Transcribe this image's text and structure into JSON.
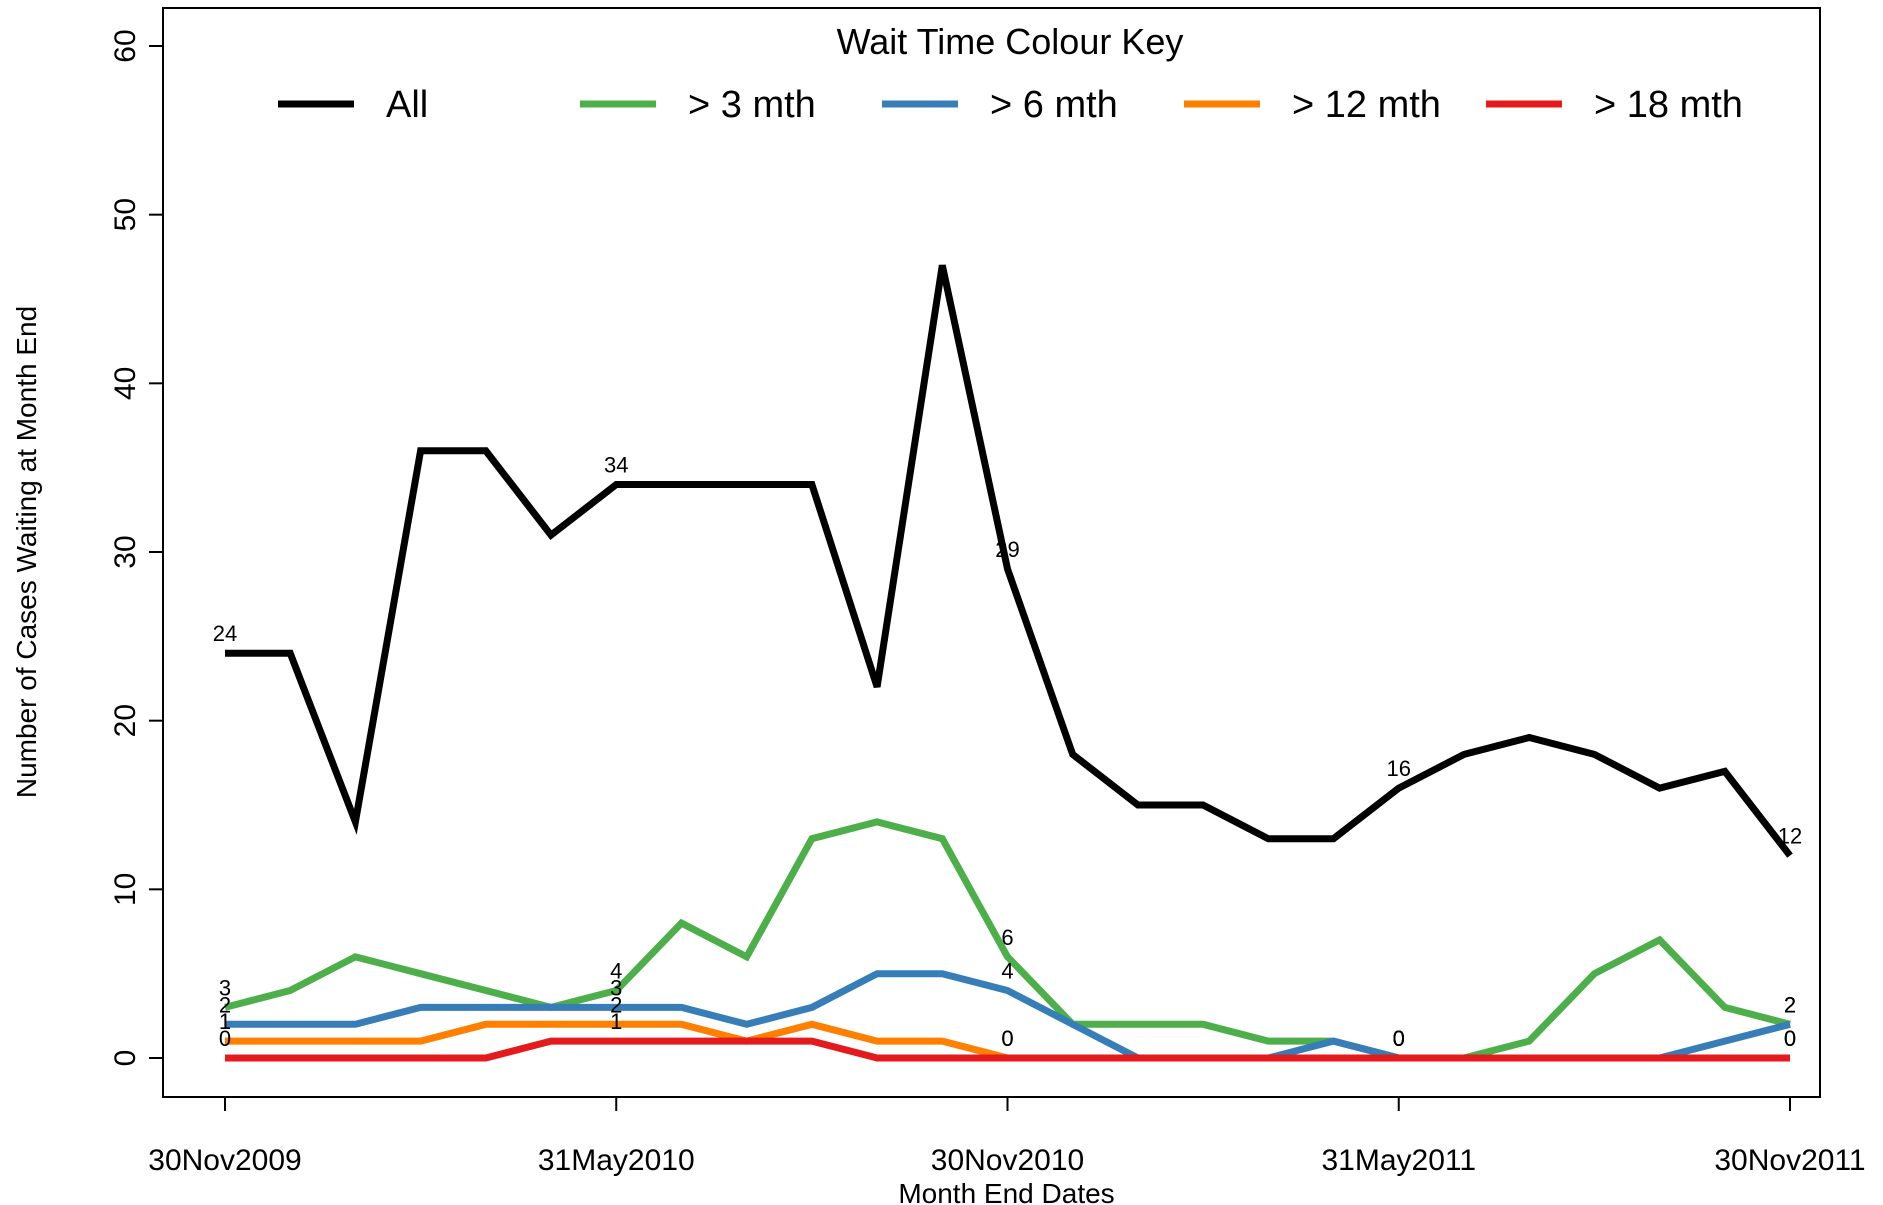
{
  "chart_data": {
    "type": "line",
    "title": "",
    "xlabel": "Month End Dates",
    "ylabel": "Number of Cases Waiting at Month End",
    "ylim": [
      0,
      60
    ],
    "yticks": [
      0,
      10,
      20,
      30,
      40,
      50,
      60
    ],
    "x": [
      "30Nov2009",
      "31Dec2009",
      "31Jan2010",
      "28Feb2010",
      "31Mar2010",
      "30Apr2010",
      "31May2010",
      "30Jun2010",
      "31Jul2010",
      "31Aug2010",
      "30Sep2010",
      "31Oct2010",
      "30Nov2010",
      "31Dec2010",
      "31Jan2011",
      "28Feb2011",
      "31Mar2011",
      "30Apr2011",
      "31May2011",
      "30Jun2011",
      "31Jul2011",
      "31Aug2011",
      "30Sep2011",
      "31Oct2011",
      "30Nov2011"
    ],
    "xtick_labels": [
      "30Nov2009",
      "31May2010",
      "30Nov2010",
      "31May2011",
      "30Nov2011"
    ],
    "grid": false,
    "legend": {
      "title": "Wait Time Colour Key",
      "placement": "top"
    },
    "series": [
      {
        "name": "All",
        "color": "#000000",
        "values": [
          24,
          24,
          14,
          36,
          36,
          31,
          34,
          34,
          34,
          34,
          22,
          47,
          29,
          18,
          15,
          15,
          13,
          13,
          16,
          18,
          19,
          18,
          16,
          17,
          12
        ]
      },
      {
        "name": "> 3 mth",
        "color": "#4daf4a",
        "values": [
          3,
          4,
          6,
          5,
          4,
          3,
          4,
          8,
          6,
          13,
          14,
          13,
          6,
          2,
          2,
          2,
          1,
          1,
          0,
          0,
          1,
          5,
          7,
          3,
          2
        ]
      },
      {
        "name": "> 6 mth",
        "color": "#377eb8",
        "values": [
          2,
          2,
          2,
          3,
          3,
          3,
          3,
          3,
          2,
          3,
          5,
          5,
          4,
          2,
          0,
          0,
          0,
          1,
          0,
          0,
          0,
          0,
          0,
          1,
          2
        ]
      },
      {
        "name": "> 12 mth",
        "color": "#ff7f00",
        "values": [
          1,
          1,
          1,
          1,
          2,
          2,
          2,
          2,
          1,
          2,
          1,
          1,
          0,
          0,
          0,
          0,
          0,
          0,
          0,
          0,
          0,
          0,
          0,
          0,
          0
        ]
      },
      {
        "name": "> 18 mth",
        "color": "#e41a1c",
        "values": [
          0,
          0,
          0,
          0,
          0,
          1,
          1,
          1,
          1,
          1,
          0,
          0,
          0,
          0,
          0,
          0,
          0,
          0,
          0,
          0,
          0,
          0,
          0,
          0,
          0
        ]
      }
    ],
    "data_labels": [
      {
        "series": 0,
        "index": 0,
        "text": "24"
      },
      {
        "series": 0,
        "index": 6,
        "text": "34"
      },
      {
        "series": 0,
        "index": 12,
        "text": "29"
      },
      {
        "series": 0,
        "index": 18,
        "text": "16"
      },
      {
        "series": 0,
        "index": 24,
        "text": "12"
      },
      {
        "series": 1,
        "index": 0,
        "text": "3"
      },
      {
        "series": 1,
        "index": 6,
        "text": "4"
      },
      {
        "series": 1,
        "index": 12,
        "text": "6"
      },
      {
        "series": 1,
        "index": 18,
        "text": "0"
      },
      {
        "series": 1,
        "index": 24,
        "text": "2"
      },
      {
        "series": 2,
        "index": 0,
        "text": "2"
      },
      {
        "series": 2,
        "index": 6,
        "text": "3"
      },
      {
        "series": 2,
        "index": 12,
        "text": "4"
      },
      {
        "series": 2,
        "index": 18,
        "text": "0"
      },
      {
        "series": 2,
        "index": 24,
        "text": "2"
      },
      {
        "series": 3,
        "index": 0,
        "text": "1"
      },
      {
        "series": 3,
        "index": 6,
        "text": "2"
      },
      {
        "series": 3,
        "index": 12,
        "text": "0"
      },
      {
        "series": 3,
        "index": 18,
        "text": "0"
      },
      {
        "series": 3,
        "index": 24,
        "text": "0"
      },
      {
        "series": 4,
        "index": 0,
        "text": "0"
      },
      {
        "series": 4,
        "index": 6,
        "text": "1"
      },
      {
        "series": 4,
        "index": 12,
        "text": "0"
      },
      {
        "series": 4,
        "index": 18,
        "text": "0"
      },
      {
        "series": 4,
        "index": 24,
        "text": "0"
      }
    ]
  }
}
